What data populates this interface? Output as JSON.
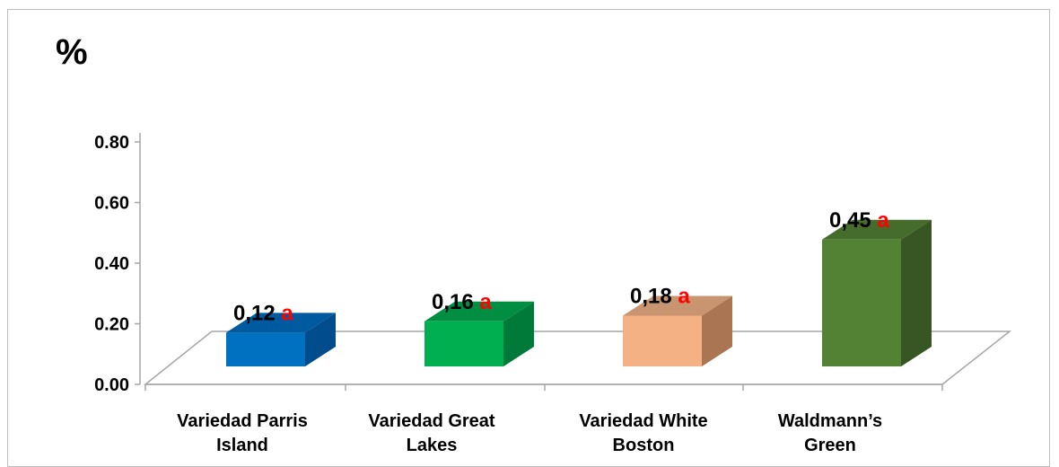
{
  "chart_data": {
    "type": "bar",
    "title": "",
    "ylabel": "%",
    "xlabel": "",
    "ylim": [
      0,
      0.8
    ],
    "yticks": [
      "0.00",
      "0.20",
      "0.40",
      "0.60",
      "0.80"
    ],
    "ytick_values": [
      0,
      0.2,
      0.4,
      0.6,
      0.8
    ],
    "categories": [
      [
        "Variedad Parris",
        "Island"
      ],
      [
        "Variedad Great",
        "Lakes"
      ],
      [
        "Variedad White",
        "Boston"
      ],
      [
        "Waldmann’s",
        "Green"
      ]
    ],
    "values": [
      0.12,
      0.16,
      0.18,
      0.45
    ],
    "value_labels": [
      "0,12",
      "0,16",
      "0,18",
      "0,45"
    ],
    "significance_letters": [
      "a",
      "a",
      "a",
      "a"
    ],
    "colors": {
      "front": [
        "#0070c0",
        "#00b050",
        "#f4b183",
        "#548235"
      ],
      "side": [
        "#004c8c",
        "#007a38",
        "#a97553",
        "#375623"
      ],
      "top": [
        "#005aa0",
        "#008f42",
        "#c99470",
        "#456c2b"
      ],
      "letter": "#ff0000",
      "floor": "#a6a6a6"
    },
    "grid": false,
    "legend": "none"
  }
}
